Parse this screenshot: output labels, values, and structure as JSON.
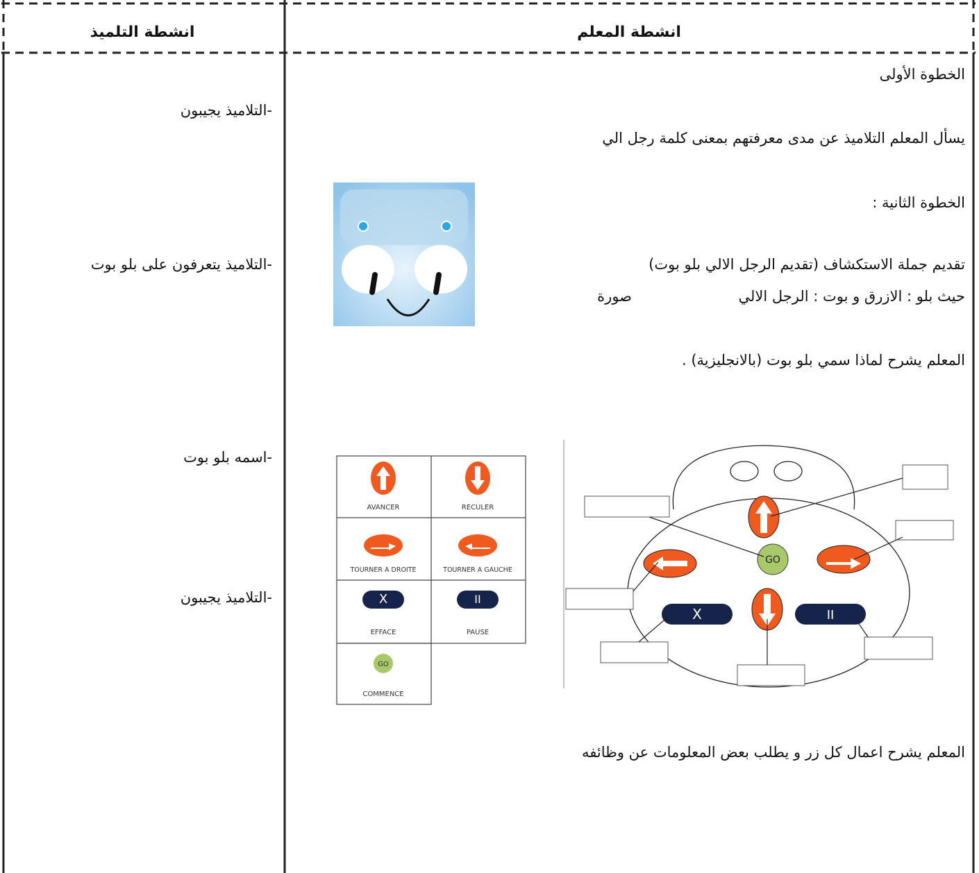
{
  "header": {
    "student_title": "انشطة التلميذ",
    "teacher_title": "انشطة المعلم"
  },
  "teacher": {
    "lines": [
      "الخطوة الأولى",
      "يسأل المعلم التلاميذ عن مدى معرفتهم بمعنى كلمة رجل الي",
      "الخطوة الثانية :",
      "تقديم جملة الاستكشاف (تقديم الرجل الالي بلو بوت)",
      "حيث بلو : الازرق و بوت : الرجل الالي",
      "المعلم يشرح لماذا سمي بلو بوت (بالانجليزية) .",
      "المعلم يشرح اعمال كل زر و يطلب بعض المعلومات عن وظائفه"
    ],
    "image_caption": "صورة"
  },
  "student": {
    "lines": [
      "-التلاميذ يجيبون",
      "-التلاميذ يتعرفون على بلو بوت",
      "-اسمه بلو بوت",
      "-التلاميذ يجيبون"
    ]
  },
  "command_card": {
    "labels": [
      "AVANCER",
      "RECULER",
      "TOURNER A DROITE",
      "TOURNER A GAUCHE",
      "EFFACE",
      "PAUSE",
      "COMMENCE"
    ],
    "erase_symbol": "X",
    "pause_symbol": "II",
    "go_symbol": "GO"
  },
  "robot_diagram": {
    "go_symbol": "GO",
    "erase_symbol": "X",
    "pause_symbol": "II"
  }
}
